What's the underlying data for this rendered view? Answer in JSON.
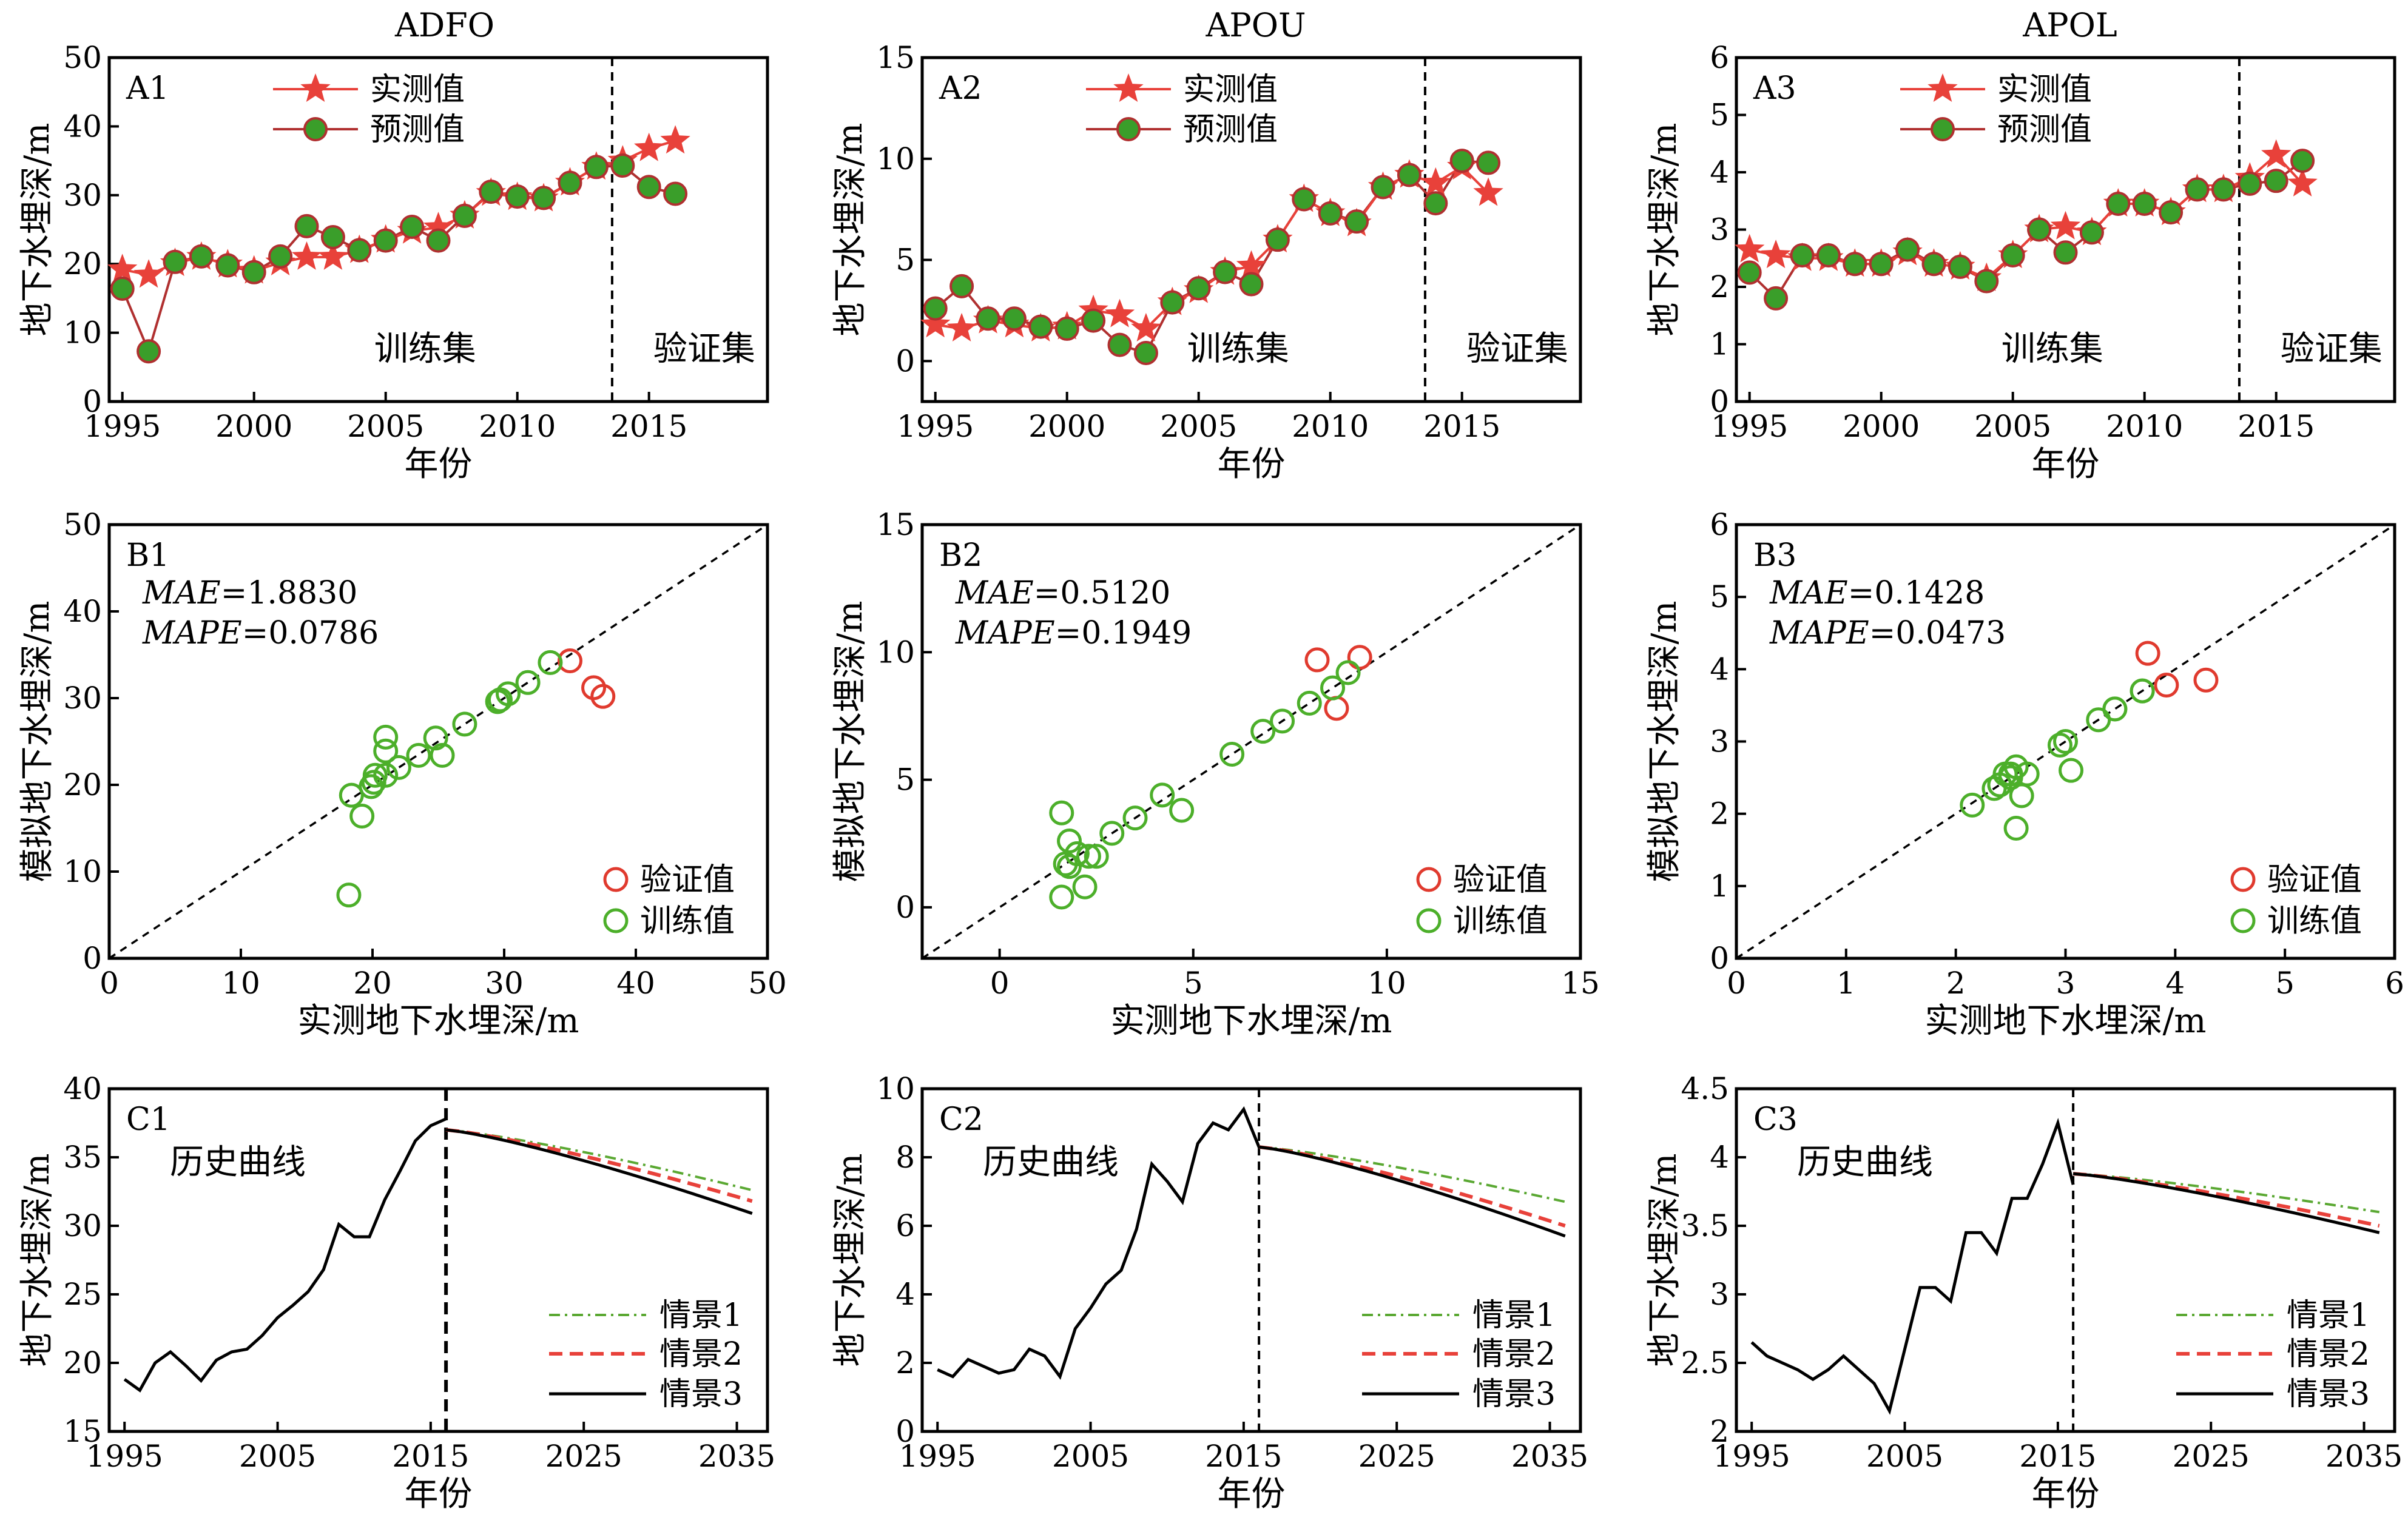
{
  "figure": {
    "col_titles": [
      "ADFO",
      "APOU",
      "APOL"
    ],
    "row_a": {
      "panel_labels": [
        "A1",
        "A2",
        "A3"
      ],
      "xlabel": "年份",
      "ylabel": "地下水埋深/m",
      "legend": {
        "observed": "实测值",
        "predicted": "预测值"
      },
      "train_label": "训练集",
      "valid_label": "验证集"
    },
    "row_b": {
      "panel_labels": [
        "B1",
        "B2",
        "B3"
      ],
      "xlabel": "实测地下水埋深/m",
      "ylabel": "模拟地下水埋深/m",
      "legend": {
        "validation": "验证值",
        "training": "训练值"
      }
    },
    "row_c": {
      "panel_labels": [
        "C1",
        "C2",
        "C3"
      ],
      "xlabel": "年份",
      "ylabel": "地下水埋深/m",
      "history_label": "历史曲线",
      "legend": [
        "情景1",
        "情景2",
        "情景3"
      ]
    },
    "colors": {
      "observed": "#e8413a",
      "predicted_fill": "#3a9e2a",
      "predicted_line": "#b03030",
      "validation": "#e03a2e",
      "training": "#4caf2a",
      "scenario1": "#5aa832",
      "scenario2": "#e8413a",
      "scenario3": "#000000"
    }
  },
  "chart_data": [
    {
      "id": "A1",
      "type": "line",
      "xlim": [
        1994.5,
        2019.5
      ],
      "ylim": [
        0,
        50
      ],
      "xticks": [
        1995,
        2000,
        2005,
        2010,
        2015
      ],
      "yticks": [
        0,
        10,
        20,
        30,
        40,
        50
      ],
      "split_x": 2013.6,
      "x": [
        1995,
        1996,
        1997,
        1998,
        1999,
        2000,
        2001,
        2002,
        2003,
        2004,
        2005,
        2006,
        2007,
        2008,
        2009,
        2010,
        2011,
        2012,
        2013,
        2014,
        2015,
        2016
      ],
      "series": [
        {
          "name": "实测值",
          "values": [
            19.2,
            18.4,
            20.1,
            21.0,
            19.9,
            19.0,
            20.2,
            21.0,
            21.0,
            22.0,
            23.5,
            24.8,
            25.3,
            27.0,
            30.3,
            29.7,
            29.5,
            31.8,
            34.1,
            35.0,
            36.8,
            37.9
          ]
        },
        {
          "name": "预测值",
          "values": [
            16.4,
            7.3,
            20.3,
            21.1,
            19.8,
            18.8,
            21.1,
            25.5,
            23.9,
            22.0,
            23.4,
            25.4,
            23.4,
            27.0,
            30.5,
            29.8,
            29.6,
            31.8,
            34.1,
            34.3,
            31.2,
            30.2
          ]
        }
      ]
    },
    {
      "id": "A2",
      "type": "line",
      "xlim": [
        1994.5,
        2019.5
      ],
      "ylim": [
        -2,
        15
      ],
      "xticks": [
        1995,
        2000,
        2005,
        2010,
        2015
      ],
      "yticks": [
        0,
        5,
        10,
        15
      ],
      "split_x": 2013.6,
      "x": [
        1995,
        1996,
        1997,
        1998,
        1999,
        2000,
        2001,
        2002,
        2003,
        2004,
        2005,
        2006,
        2007,
        2008,
        2009,
        2010,
        2011,
        2012,
        2013,
        2014,
        2015,
        2016
      ],
      "series": [
        {
          "name": "实测值",
          "values": [
            1.8,
            1.6,
            2.0,
            1.8,
            1.6,
            1.7,
            2.5,
            2.3,
            1.6,
            2.9,
            3.5,
            4.4,
            4.7,
            6.0,
            8.0,
            7.3,
            6.8,
            8.6,
            9.2,
            8.8,
            9.6,
            8.3
          ]
        },
        {
          "name": "预测值",
          "values": [
            2.6,
            3.7,
            2.1,
            2.1,
            1.7,
            1.6,
            2.0,
            0.8,
            0.4,
            2.9,
            3.6,
            4.4,
            3.8,
            6.0,
            8.0,
            7.3,
            6.9,
            8.6,
            9.2,
            7.8,
            9.9,
            9.8
          ]
        }
      ]
    },
    {
      "id": "A3",
      "type": "line",
      "xlim": [
        1994.5,
        2019.5
      ],
      "ylim": [
        0,
        6
      ],
      "xticks": [
        1995,
        2000,
        2005,
        2010,
        2015
      ],
      "yticks": [
        0,
        1,
        2,
        3,
        4,
        5,
        6
      ],
      "split_x": 2013.6,
      "x": [
        1995,
        1996,
        1997,
        1998,
        1999,
        2000,
        2001,
        2002,
        2003,
        2004,
        2005,
        2006,
        2007,
        2008,
        2009,
        2010,
        2011,
        2012,
        2013,
        2014,
        2015,
        2016
      ],
      "series": [
        {
          "name": "实测值",
          "values": [
            2.65,
            2.55,
            2.5,
            2.5,
            2.4,
            2.4,
            2.6,
            2.4,
            2.35,
            2.15,
            2.55,
            3.0,
            3.05,
            2.95,
            3.45,
            3.45,
            3.3,
            3.7,
            3.7,
            3.9,
            4.3,
            3.8
          ]
        },
        {
          "name": "预测值",
          "values": [
            2.25,
            1.8,
            2.55,
            2.55,
            2.4,
            2.4,
            2.65,
            2.4,
            2.35,
            2.1,
            2.55,
            3.0,
            2.6,
            2.95,
            3.45,
            3.45,
            3.3,
            3.7,
            3.7,
            3.8,
            3.85,
            4.2
          ]
        }
      ]
    },
    {
      "id": "B1",
      "type": "scatter",
      "xlim": [
        0,
        50
      ],
      "ylim": [
        0,
        50
      ],
      "xticks": [
        0,
        10,
        20,
        30,
        40,
        50
      ],
      "yticks": [
        0,
        10,
        20,
        30,
        40,
        50
      ],
      "metrics": [
        {
          "name": "MAE",
          "value": "=1.8830"
        },
        {
          "name": "MAPE",
          "value": "=0.0786"
        }
      ],
      "series": [
        {
          "name": "验证值",
          "x": [
            35.0,
            36.8,
            37.5
          ],
          "y": [
            34.3,
            31.2,
            30.2
          ]
        },
        {
          "name": "训练值",
          "x": [
            18.2,
            18.4,
            19.2,
            19.9,
            20.1,
            21.0,
            21.0,
            21.0,
            20.2,
            22.0,
            23.5,
            24.8,
            25.3,
            27.0,
            29.5,
            29.7,
            30.3,
            31.8,
            33.5
          ],
          "y": [
            7.3,
            18.8,
            16.4,
            19.8,
            20.3,
            21.1,
            25.5,
            23.9,
            21.1,
            22.0,
            23.4,
            25.4,
            23.4,
            27.0,
            29.6,
            29.8,
            30.5,
            31.8,
            34.1
          ]
        }
      ]
    },
    {
      "id": "B2",
      "type": "scatter",
      "xlim": [
        -2,
        15
      ],
      "ylim": [
        -2,
        15
      ],
      "xticks": [
        0,
        5,
        10,
        15
      ],
      "yticks": [
        0,
        5,
        10,
        15
      ],
      "metrics": [
        {
          "name": "MAE",
          "value": "=0.5120"
        },
        {
          "name": "MAPE",
          "value": "=0.1949"
        }
      ],
      "series": [
        {
          "name": "验证值",
          "x": [
            8.2,
            8.7,
            9.3
          ],
          "y": [
            9.7,
            7.8,
            9.8
          ]
        },
        {
          "name": "训练值",
          "x": [
            1.6,
            1.6,
            1.7,
            1.8,
            1.8,
            2.0,
            2.0,
            2.2,
            2.3,
            2.5,
            2.9,
            3.5,
            4.2,
            4.7,
            6.0,
            6.8,
            7.3,
            8.0,
            8.6,
            9.0
          ],
          "y": [
            3.7,
            0.4,
            1.7,
            2.6,
            1.6,
            2.1,
            2.1,
            0.8,
            2.0,
            2.0,
            2.9,
            3.5,
            4.4,
            3.8,
            6.0,
            6.9,
            7.3,
            8.0,
            8.6,
            9.2
          ]
        }
      ]
    },
    {
      "id": "B3",
      "type": "scatter",
      "xlim": [
        0,
        6
      ],
      "ylim": [
        0,
        6
      ],
      "xticks": [
        0,
        1,
        2,
        3,
        4,
        5,
        6
      ],
      "yticks": [
        0,
        1,
        2,
        3,
        4,
        5,
        6
      ],
      "metrics": [
        {
          "name": "MAE",
          "value": "=0.1428"
        },
        {
          "name": "MAPE",
          "value": "=0.0473"
        }
      ],
      "series": [
        {
          "name": "验证值",
          "x": [
            3.75,
            3.92,
            4.28
          ],
          "y": [
            4.22,
            3.78,
            3.85
          ]
        },
        {
          "name": "训练值",
          "x": [
            2.15,
            2.35,
            2.4,
            2.4,
            2.45,
            2.5,
            2.5,
            2.55,
            2.55,
            2.6,
            2.65,
            2.95,
            3.0,
            3.05,
            3.3,
            3.45,
            3.45,
            3.7,
            3.7
          ],
          "y": [
            2.12,
            2.35,
            2.4,
            2.4,
            2.55,
            2.5,
            2.55,
            2.65,
            1.8,
            2.25,
            2.55,
            2.95,
            3.0,
            2.6,
            3.3,
            3.45,
            3.45,
            3.7,
            3.7
          ]
        }
      ]
    },
    {
      "id": "C1",
      "type": "line",
      "xlim": [
        1994,
        2037
      ],
      "ylim": [
        15,
        40
      ],
      "xticks": [
        1995,
        2005,
        2015,
        2025,
        2035
      ],
      "yticks": [
        15,
        20,
        25,
        30,
        35,
        40
      ],
      "split_x": 2016,
      "history": {
        "x": [
          1995,
          1996,
          1997,
          1998,
          1999,
          2000,
          2001,
          2002,
          2003,
          2004,
          2005,
          2006,
          2007,
          2008,
          2009,
          2010,
          2011,
          2012,
          2013,
          2014,
          2015,
          2016
        ],
        "y": [
          18.8,
          18.0,
          20.0,
          20.8,
          19.8,
          18.7,
          20.2,
          20.8,
          21.0,
          22.0,
          23.3,
          24.2,
          25.2,
          26.8,
          30.1,
          29.2,
          29.2,
          31.9,
          34.0,
          36.2,
          37.3,
          37.8
        ]
      },
      "series": [
        {
          "name": "情景1",
          "x": [
            2016,
            2036
          ],
          "y": [
            37.0,
            32.6
          ],
          "curve": "concave"
        },
        {
          "name": "情景2",
          "x": [
            2016,
            2036
          ],
          "y": [
            37.0,
            31.8
          ],
          "curve": "concave"
        },
        {
          "name": "情景3",
          "x": [
            2016,
            2036
          ],
          "y": [
            37.0,
            30.9
          ],
          "curve": "concave"
        }
      ]
    },
    {
      "id": "C2",
      "type": "line",
      "xlim": [
        1994,
        2037
      ],
      "ylim": [
        0,
        10
      ],
      "xticks": [
        1995,
        2005,
        2015,
        2025,
        2035
      ],
      "yticks": [
        0,
        2,
        4,
        6,
        8,
        10
      ],
      "split_x": 2016,
      "history": {
        "x": [
          1995,
          1996,
          1997,
          1998,
          1999,
          2000,
          2001,
          2002,
          2003,
          2004,
          2005,
          2006,
          2007,
          2008,
          2009,
          2010,
          2011,
          2012,
          2013,
          2014,
          2015,
          2016
        ],
        "y": [
          1.8,
          1.6,
          2.1,
          1.9,
          1.7,
          1.8,
          2.4,
          2.2,
          1.6,
          3.0,
          3.6,
          4.3,
          4.7,
          5.9,
          7.8,
          7.3,
          6.7,
          8.4,
          9.0,
          8.8,
          9.4,
          8.3
        ]
      },
      "series": [
        {
          "name": "情景1",
          "x": [
            2016,
            2036
          ],
          "y": [
            8.3,
            6.7
          ],
          "curve": "concave"
        },
        {
          "name": "情景2",
          "x": [
            2016,
            2036
          ],
          "y": [
            8.3,
            6.0
          ],
          "curve": "concave"
        },
        {
          "name": "情景3",
          "x": [
            2016,
            2036
          ],
          "y": [
            8.3,
            5.7
          ],
          "curve": "concave"
        }
      ]
    },
    {
      "id": "C3",
      "type": "line",
      "xlim": [
        1994,
        2037
      ],
      "ylim": [
        2.0,
        4.5
      ],
      "xticks": [
        1995,
        2005,
        2015,
        2025,
        2035
      ],
      "yticks": [
        2.0,
        2.5,
        3.0,
        3.5,
        4.0,
        4.5
      ],
      "split_x": 2016,
      "history": {
        "x": [
          1995,
          1996,
          1997,
          1998,
          1999,
          2000,
          2001,
          2002,
          2003,
          2004,
          2005,
          2006,
          2007,
          2008,
          2009,
          2010,
          2011,
          2012,
          2013,
          2014,
          2015,
          2016
        ],
        "y": [
          2.65,
          2.55,
          2.5,
          2.45,
          2.38,
          2.45,
          2.55,
          2.45,
          2.35,
          2.15,
          2.6,
          3.05,
          3.05,
          2.95,
          3.45,
          3.45,
          3.3,
          3.7,
          3.7,
          3.95,
          4.25,
          3.8
        ]
      },
      "series": [
        {
          "name": "情景1",
          "x": [
            2016,
            2036
          ],
          "y": [
            3.88,
            3.6
          ],
          "curve": "concave"
        },
        {
          "name": "情景2",
          "x": [
            2016,
            2036
          ],
          "y": [
            3.88,
            3.5
          ],
          "curve": "concave"
        },
        {
          "name": "情景3",
          "x": [
            2016,
            2036
          ],
          "y": [
            3.88,
            3.45
          ],
          "curve": "concave"
        }
      ]
    }
  ]
}
